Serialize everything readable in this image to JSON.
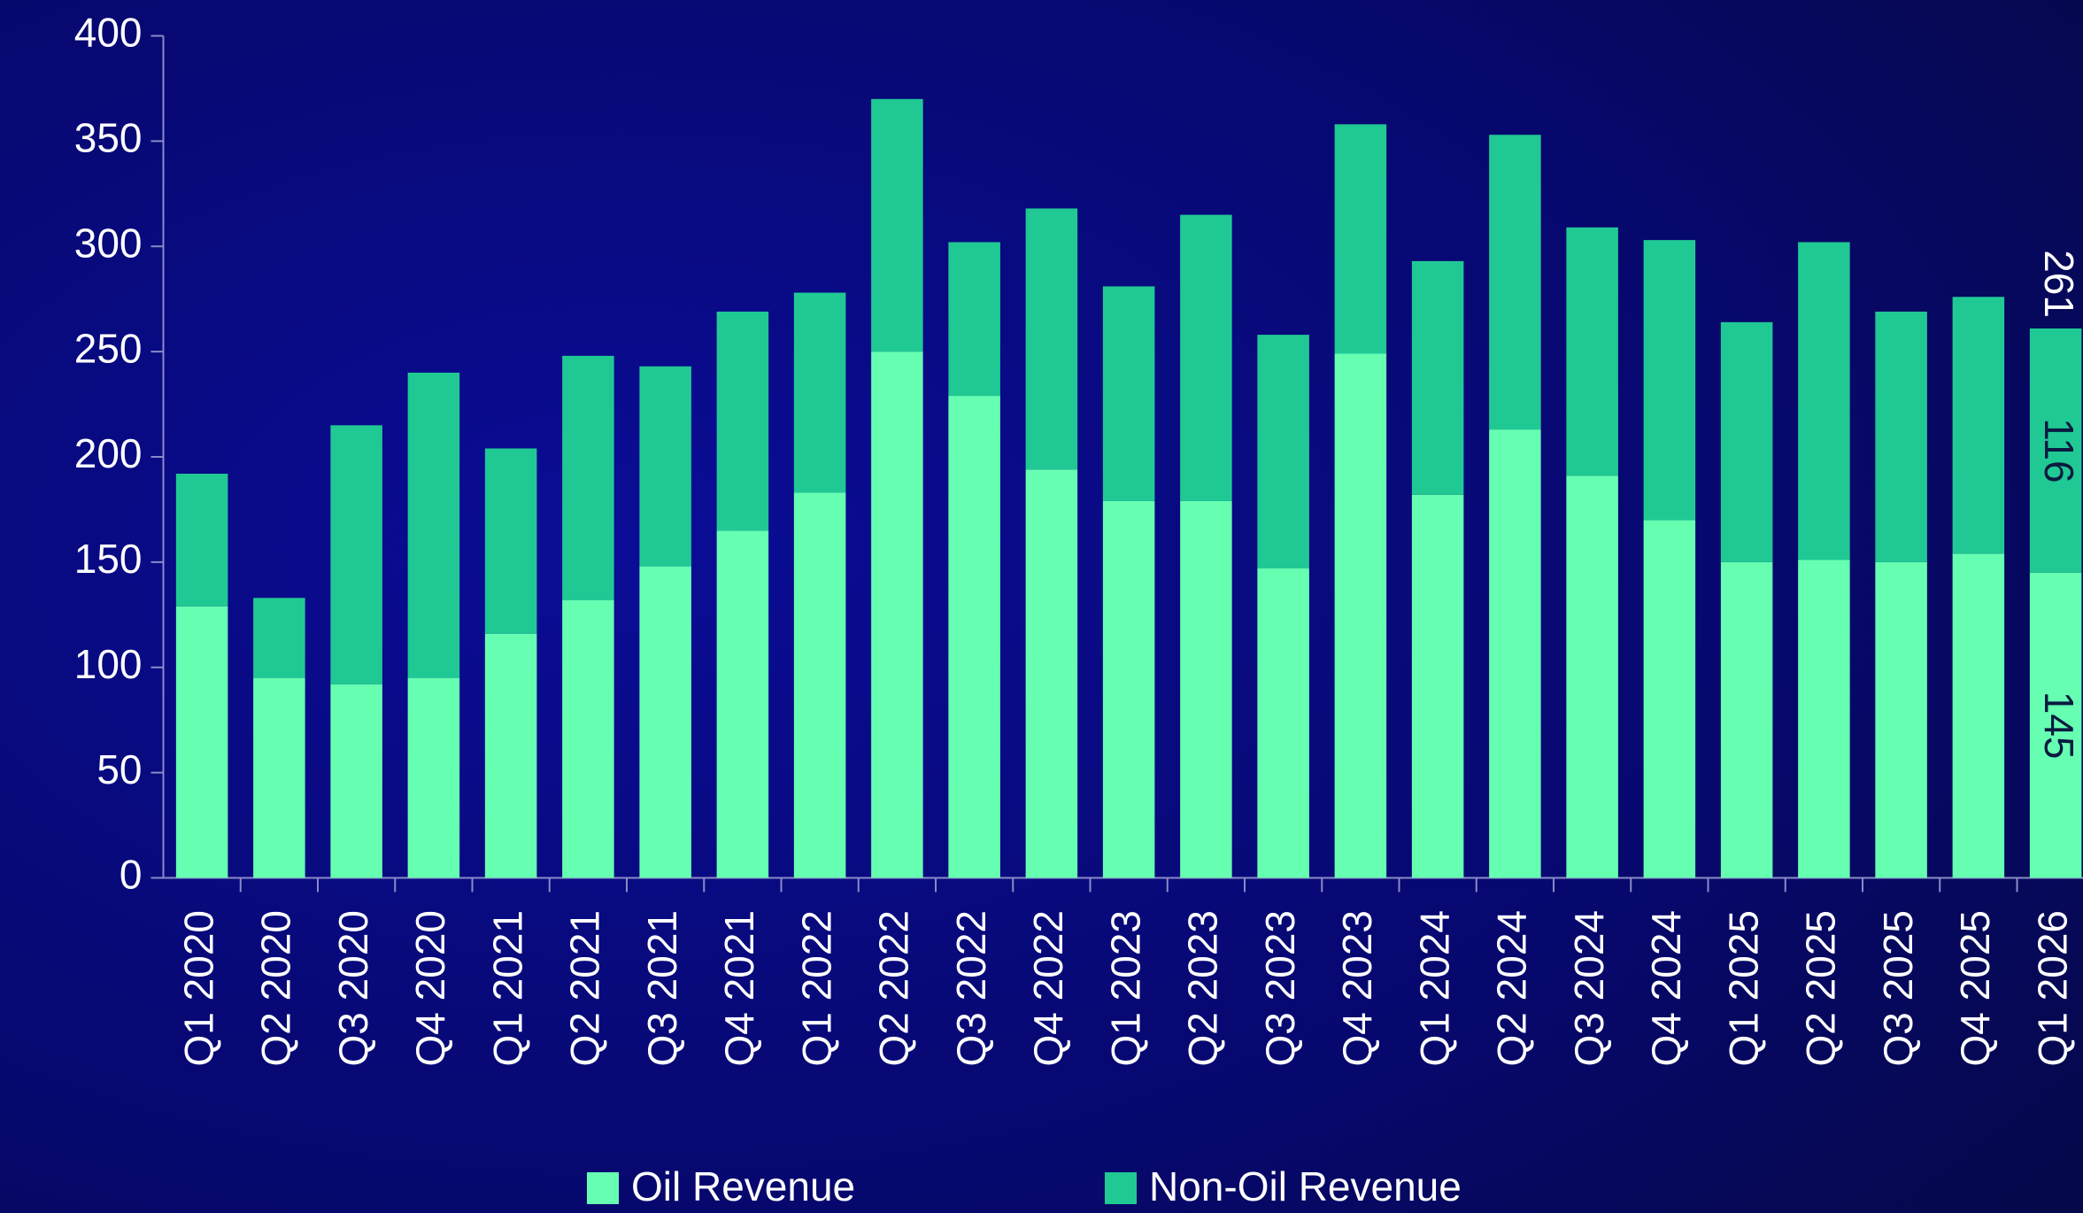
{
  "chart_data": {
    "type": "stacked_bar",
    "categories": [
      "Q1 2020",
      "Q2 2020",
      "Q3 2020",
      "Q4 2020",
      "Q1 2021",
      "Q2 2021",
      "Q3 2021",
      "Q4 2021",
      "Q1 2022",
      "Q2 2022",
      "Q3 2022",
      "Q4 2022",
      "Q1 2023",
      "Q2 2023",
      "Q3 2023",
      "Q4 2023",
      "Q1 2024",
      "Q2 2024",
      "Q3 2024",
      "Q4 2024",
      "Q1 2025",
      "Q2 2025",
      "Q3 2025",
      "Q4 2025",
      "Q1 2026"
    ],
    "series": [
      {
        "name": "Oil Revenue",
        "color": "#66ffb2",
        "values": [
          129,
          95,
          92,
          95,
          116,
          132,
          148,
          165,
          183,
          250,
          229,
          194,
          179,
          179,
          147,
          249,
          182,
          213,
          191,
          170,
          150,
          151,
          150,
          154,
          145
        ]
      },
      {
        "name": "Non-Oil Revenue",
        "color": "#20c994",
        "values": [
          63,
          38,
          123,
          145,
          88,
          116,
          95,
          104,
          95,
          120,
          73,
          124,
          102,
          136,
          111,
          109,
          111,
          140,
          118,
          133,
          114,
          151,
          119,
          122,
          116
        ]
      }
    ],
    "annotation": "261",
    "ylim": [
      0,
      400
    ],
    "yticks": [
      0,
      50,
      100,
      150,
      200,
      250,
      300,
      350,
      400
    ],
    "legend": "bottom"
  }
}
